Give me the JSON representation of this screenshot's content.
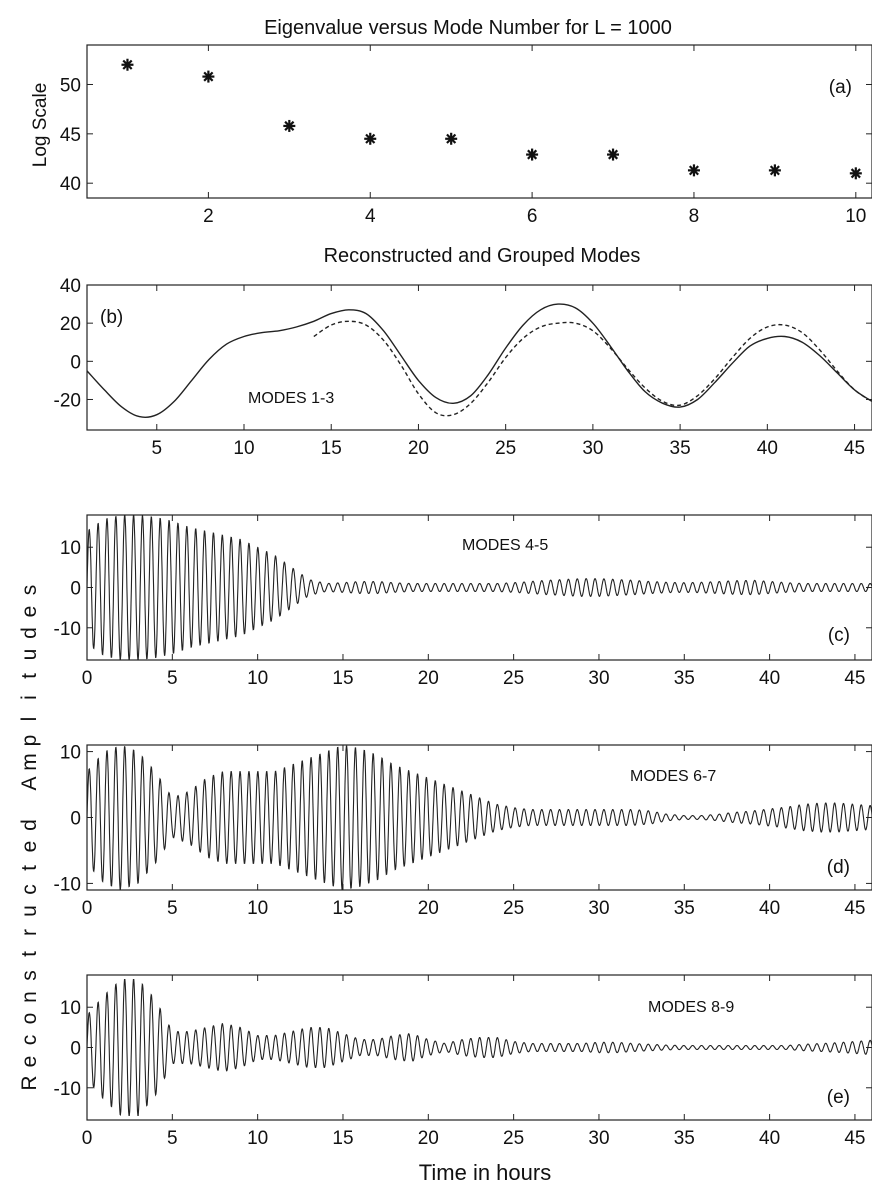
{
  "figure": {
    "shared_ylabel": "Reconstructed Amplitudes",
    "shared_xlabel": "Time in hours"
  },
  "chart_data": [
    {
      "type": "scatter",
      "title": "Eigenvalue versus Mode Number for L = 1000",
      "panel_label": "(a)",
      "xlabel": "",
      "ylabel": "Log Scale",
      "xlim": [
        0.5,
        10.2
      ],
      "ylim": [
        38.5,
        54
      ],
      "xticks": [
        2,
        4,
        6,
        8,
        10
      ],
      "yticks": [
        40,
        45,
        50
      ],
      "marker": "asterisk",
      "color": "#111111",
      "x": [
        1,
        2,
        3,
        4,
        5,
        6,
        7,
        8,
        9,
        10
      ],
      "y": [
        52.0,
        50.8,
        45.8,
        44.5,
        44.5,
        42.9,
        42.9,
        41.3,
        41.3,
        41.0
      ]
    },
    {
      "type": "line",
      "title": "Reconstructed and Grouped Modes",
      "panel_label": "(b)",
      "annotation": "MODES 1-3",
      "xlim": [
        1,
        46
      ],
      "ylim": [
        -36,
        40
      ],
      "xticks": [
        5,
        10,
        15,
        20,
        25,
        30,
        35,
        40,
        45
      ],
      "yticks": [
        -20,
        0,
        20,
        40
      ],
      "series": [
        {
          "style": "solid",
          "x": [
            1,
            2,
            3,
            4,
            5,
            6,
            7,
            8,
            9,
            10,
            11,
            12,
            13,
            14,
            15,
            16,
            17,
            18,
            19,
            20,
            21,
            22,
            23,
            24,
            25,
            26,
            27,
            28,
            29,
            30,
            31,
            32,
            33,
            34,
            35,
            36,
            37,
            38,
            39,
            40,
            41,
            42,
            43,
            44,
            45,
            46
          ],
          "y": [
            -5,
            -15,
            -24,
            -29,
            -28,
            -21,
            -10,
            1,
            9,
            13,
            15,
            16,
            18,
            21,
            25,
            27,
            25,
            16,
            3,
            -10,
            -19,
            -22,
            -18,
            -7,
            7,
            19,
            27,
            30,
            28,
            20,
            8,
            -5,
            -16,
            -22,
            -24,
            -20,
            -11,
            -1,
            8,
            12,
            13,
            10,
            3,
            -6,
            -15,
            -21
          ]
        },
        {
          "style": "dashed",
          "x": [
            14,
            15,
            16,
            17,
            18,
            19,
            20,
            21,
            22,
            23,
            24,
            25,
            26,
            27,
            28,
            29,
            30,
            31,
            32,
            33,
            34,
            35,
            36,
            37,
            38,
            39,
            40,
            41,
            42,
            43,
            44,
            45,
            46
          ],
          "y": [
            13,
            19,
            21,
            19,
            11,
            -2,
            -17,
            -27,
            -28,
            -22,
            -11,
            2,
            12,
            18,
            20,
            20,
            16,
            7,
            -4,
            -14,
            -21,
            -23,
            -18,
            -9,
            2,
            12,
            18,
            19,
            15,
            6,
            -5,
            -15,
            -21
          ]
        }
      ]
    },
    {
      "type": "line",
      "panel_label": "(c)",
      "annotation": "MODES 4-5",
      "xlim": [
        0,
        46
      ],
      "ylim": [
        -18,
        18
      ],
      "xticks": [
        0,
        5,
        10,
        15,
        20,
        25,
        30,
        35,
        40,
        45
      ],
      "yticks": [
        -10,
        0,
        10
      ],
      "style": "oscillation-envelope",
      "period_hours": 0.52,
      "envelope": {
        "t": [
          0,
          1,
          2,
          3,
          4,
          5,
          6,
          7,
          8,
          9,
          10,
          11,
          12,
          13,
          14,
          15,
          16,
          17,
          18,
          19,
          20,
          21,
          22,
          23,
          24,
          25,
          26,
          27,
          28,
          29,
          30,
          31,
          32,
          33,
          34,
          35,
          36,
          37,
          38,
          39,
          40,
          41,
          42,
          43,
          44,
          45,
          46
        ],
        "amplitude": [
          14,
          17,
          18,
          18,
          17.5,
          16.5,
          15,
          14,
          13,
          12,
          10,
          8,
          5,
          2,
          1,
          1.2,
          1.5,
          1.5,
          1.2,
          1,
          1,
          1,
          1,
          1,
          1,
          1.2,
          1.5,
          1.8,
          2,
          2.2,
          2.2,
          2,
          1.8,
          1.5,
          1.3,
          1.2,
          1.3,
          1.5,
          1.7,
          1.8,
          1.5,
          1.2,
          1,
          1,
          1,
          1,
          1
        ]
      }
    },
    {
      "type": "line",
      "panel_label": "(d)",
      "annotation": "MODES 6-7",
      "xlim": [
        0,
        46
      ],
      "ylim": [
        -11,
        11
      ],
      "xticks": [
        0,
        5,
        10,
        15,
        20,
        25,
        30,
        35,
        40,
        45
      ],
      "yticks": [
        -10,
        0,
        10
      ],
      "style": "oscillation-envelope",
      "period_hours": 0.52,
      "envelope": {
        "t": [
          0,
          1,
          2,
          3,
          4,
          5,
          6,
          7,
          8,
          9,
          10,
          11,
          12,
          13,
          14,
          15,
          16,
          17,
          18,
          19,
          20,
          21,
          22,
          23,
          24,
          25,
          26,
          27,
          28,
          29,
          30,
          31,
          32,
          33,
          34,
          35,
          36,
          37,
          38,
          39,
          40,
          41,
          42,
          43,
          44,
          45,
          46
        ],
        "amplitude": [
          7,
          10,
          11,
          10,
          7,
          3,
          4,
          6,
          7,
          7,
          7,
          7,
          8,
          9,
          10,
          11,
          10.5,
          9.5,
          8,
          7,
          6,
          5,
          4,
          3,
          2,
          1.5,
          1.2,
          1.2,
          1.2,
          1.2,
          1.2,
          1.2,
          1.2,
          1,
          0.5,
          0.3,
          0.3,
          0.5,
          0.8,
          1,
          1.3,
          1.6,
          2,
          2.2,
          2.2,
          2,
          1.8
        ]
      }
    },
    {
      "type": "line",
      "panel_label": "(e)",
      "annotation": "MODES 8-9",
      "xlim": [
        0,
        46
      ],
      "ylim": [
        -18,
        18
      ],
      "xticks": [
        0,
        5,
        10,
        15,
        20,
        25,
        30,
        35,
        40,
        45
      ],
      "yticks": [
        -10,
        0,
        10
      ],
      "style": "oscillation-envelope",
      "period_hours": 0.52,
      "envelope": {
        "t": [
          0,
          1,
          2,
          3,
          4,
          5,
          6,
          7,
          8,
          9,
          10,
          11,
          12,
          13,
          14,
          15,
          16,
          17,
          18,
          19,
          20,
          21,
          22,
          23,
          24,
          25,
          26,
          27,
          28,
          29,
          30,
          31,
          32,
          33,
          34,
          35,
          36,
          37,
          38,
          39,
          40,
          41,
          42,
          43,
          44,
          45,
          46
        ],
        "amplitude": [
          8,
          13,
          17,
          17,
          12,
          4,
          4,
          5,
          6,
          5,
          3,
          3,
          4,
          5,
          5,
          3.5,
          2,
          2,
          3,
          3.5,
          2,
          1,
          2,
          2.5,
          2.5,
          1.5,
          1,
          1,
          1,
          1,
          1.3,
          1.3,
          1,
          0.8,
          0.6,
          0.5,
          0.5,
          0.5,
          0.5,
          0.5,
          0.5,
          0.5,
          0.8,
          1,
          1.2,
          1.5,
          1.8
        ]
      }
    }
  ]
}
